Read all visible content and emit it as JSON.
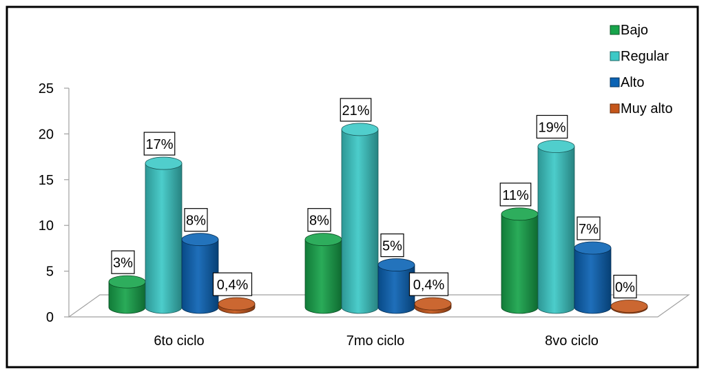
{
  "chart_data": {
    "type": "bar",
    "categories": [
      "6to ciclo",
      "7mo ciclo",
      "8vo ciclo"
    ],
    "series": [
      {
        "name": "Bajo",
        "values": [
          3,
          8,
          11
        ],
        "labels": [
          "3%",
          "8%",
          "11%"
        ],
        "color": "#17a44b"
      },
      {
        "name": "Regular",
        "values": [
          17,
          21,
          19
        ],
        "labels": [
          "17%",
          "21%",
          "19%"
        ],
        "color": "#3cc9c6"
      },
      {
        "name": "Alto",
        "values": [
          8,
          5,
          7
        ],
        "labels": [
          "8%",
          "5%",
          "7%"
        ],
        "color": "#0b63b4"
      },
      {
        "name": "Muy alto",
        "values": [
          0.4,
          0.4,
          0
        ],
        "labels": [
          "0,4%",
          "0,4%",
          "0%"
        ],
        "color": "#c5561a"
      }
    ],
    "y_ticks": [
      "0",
      "5",
      "10",
      "15",
      "20",
      "25"
    ],
    "ylim": [
      0,
      25
    ],
    "legend_position": "top-right",
    "grid": false,
    "style": "3d-cylinder"
  }
}
